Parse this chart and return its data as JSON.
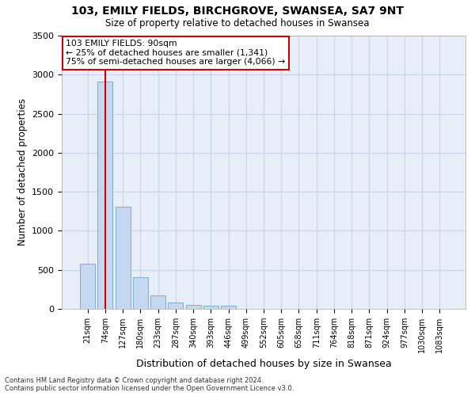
{
  "title1": "103, EMILY FIELDS, BIRCHGROVE, SWANSEA, SA7 9NT",
  "title2": "Size of property relative to detached houses in Swansea",
  "xlabel": "Distribution of detached houses by size in Swansea",
  "ylabel": "Number of detached properties",
  "categories": [
    "21sqm",
    "74sqm",
    "127sqm",
    "180sqm",
    "233sqm",
    "287sqm",
    "340sqm",
    "393sqm",
    "446sqm",
    "499sqm",
    "552sqm",
    "605sqm",
    "658sqm",
    "711sqm",
    "764sqm",
    "818sqm",
    "871sqm",
    "924sqm",
    "977sqm",
    "1030sqm",
    "1083sqm"
  ],
  "values": [
    575,
    2910,
    1305,
    410,
    175,
    80,
    48,
    40,
    40,
    0,
    0,
    0,
    0,
    0,
    0,
    0,
    0,
    0,
    0,
    0,
    0
  ],
  "bar_color": "#c5d8f0",
  "bar_edge_color": "#7bafd4",
  "highlight_bar_index": 1,
  "highlight_color": "#cc0000",
  "annotation_title": "103 EMILY FIELDS: 90sqm",
  "annotation_line1": "← 25% of detached houses are smaller (1,341)",
  "annotation_line2": "75% of semi-detached houses are larger (4,066) →",
  "annotation_box_facecolor": "#ffffff",
  "annotation_box_edgecolor": "#cc0000",
  "ylim": [
    0,
    3500
  ],
  "yticks": [
    0,
    500,
    1000,
    1500,
    2000,
    2500,
    3000,
    3500
  ],
  "grid_color": "#c8d4e8",
  "bg_color": "#e8eef8",
  "footer1": "Contains HM Land Registry data © Crown copyright and database right 2024.",
  "footer2": "Contains public sector information licensed under the Open Government Licence v3.0."
}
